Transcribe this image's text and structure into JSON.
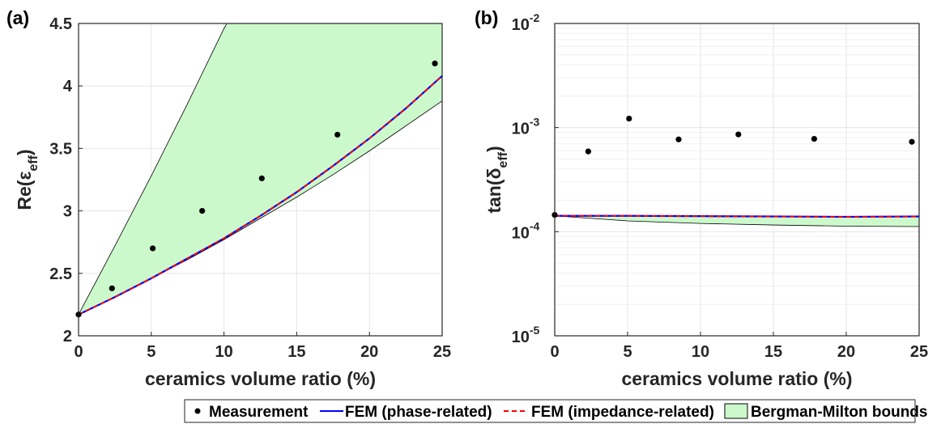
{
  "colors": {
    "band_fill": "#ccf9cc",
    "band_edge": "#000000",
    "fem_phase": "#0000ff",
    "fem_impedance": "#ff0000",
    "marker": "#000000",
    "grid": "#e6e6e6"
  },
  "legend": {
    "measurement": "Measurement",
    "fem_phase": "FEM (phase-related)",
    "fem_impedance": "FEM (impedance-related)",
    "bounds": "Bergman-Milton bounds"
  },
  "chart_data": [
    {
      "panel_label": "(a)",
      "type": "line",
      "xlabel": "ceramics volume ratio (%)",
      "ylabel": "Re(ε",
      "ylabel_sub": "eff",
      "ylabel_close": ")",
      "xlim": [
        0,
        25
      ],
      "ylim": [
        2,
        4.5
      ],
      "yscale": "linear",
      "grid": true,
      "xticks": [
        0,
        5,
        10,
        15,
        20,
        25
      ],
      "xtick_labels": [
        "0",
        "5",
        "10",
        "15",
        "20",
        "25"
      ],
      "yticks": [
        2,
        2.5,
        3,
        3.5,
        4,
        4.5
      ],
      "ytick_labels": [
        "2",
        "2.5",
        "3",
        "3.5",
        "4",
        "4.5"
      ],
      "measurement": {
        "x": [
          0,
          2.3,
          5.1,
          8.5,
          12.6,
          17.8,
          24.5
        ],
        "y": [
          2.17,
          2.38,
          2.7,
          3.0,
          3.26,
          3.61,
          4.18
        ]
      },
      "fem_phase": {
        "x": [
          0,
          2.5,
          5,
          7.5,
          10,
          12.5,
          15,
          17.5,
          20,
          22.5,
          25
        ],
        "y": [
          2.17,
          2.31,
          2.46,
          2.62,
          2.78,
          2.96,
          3.15,
          3.36,
          3.58,
          3.82,
          4.08
        ]
      },
      "fem_impedance": {
        "x": [
          0,
          2.5,
          5,
          7.5,
          10,
          12.5,
          15,
          17.5,
          20,
          22.5,
          25
        ],
        "y": [
          2.17,
          2.31,
          2.46,
          2.62,
          2.78,
          2.96,
          3.15,
          3.36,
          3.58,
          3.82,
          4.08
        ]
      },
      "bounds_upper": {
        "x": [
          0,
          2.5,
          5,
          7.5,
          10,
          10.2,
          25
        ],
        "y": [
          2.17,
          2.72,
          3.28,
          3.86,
          4.46,
          4.5,
          4.5
        ]
      },
      "bounds_lower": {
        "x": [
          0,
          2.5,
          5,
          7.5,
          10,
          12.5,
          15,
          17.5,
          20,
          22.5,
          25
        ],
        "y": [
          2.17,
          2.31,
          2.46,
          2.61,
          2.77,
          2.94,
          3.11,
          3.29,
          3.48,
          3.68,
          3.88
        ]
      }
    },
    {
      "panel_label": "(b)",
      "type": "line",
      "xlabel": "ceramics volume ratio (%)",
      "ylabel": "tan(δ",
      "ylabel_sub": "eff",
      "ylabel_close": ")",
      "xlim": [
        0,
        25
      ],
      "ylim": [
        1e-05,
        0.01
      ],
      "yscale": "log",
      "grid": true,
      "xticks": [
        0,
        5,
        10,
        15,
        20,
        25
      ],
      "xtick_labels": [
        "0",
        "5",
        "10",
        "15",
        "20",
        "25"
      ],
      "yticks": [
        1e-05,
        0.0001,
        0.001,
        0.01
      ],
      "ytick_base": [
        "10",
        "10",
        "10",
        "10"
      ],
      "ytick_exp": [
        "-5",
        "-4",
        "-3",
        "-2"
      ],
      "measurement": {
        "x": [
          0,
          2.3,
          5.1,
          8.5,
          12.6,
          17.8,
          24.5
        ],
        "y": [
          0.000145,
          0.00059,
          0.00122,
          0.00077,
          0.00086,
          0.00078,
          0.00073
        ]
      },
      "fem_phase": {
        "x": [
          0,
          5,
          10,
          15,
          20,
          25
        ],
        "y": [
          0.000142,
          0.000142,
          0.000141,
          0.00014,
          0.000139,
          0.00014
        ]
      },
      "fem_impedance": {
        "x": [
          0,
          5,
          10,
          15,
          20,
          25
        ],
        "y": [
          0.000142,
          0.000142,
          0.000141,
          0.00014,
          0.000139,
          0.00014
        ]
      },
      "bounds_upper": {
        "x": [
          0,
          5,
          10,
          15,
          20,
          25
        ],
        "y": [
          0.000142,
          0.000142,
          0.000141,
          0.00014,
          0.000139,
          0.00014
        ]
      },
      "bounds_lower": {
        "x": [
          0,
          5,
          10,
          15,
          20,
          25
        ],
        "y": [
          0.000142,
          0.000127,
          0.00012,
          0.000116,
          0.000113,
          0.000112
        ]
      }
    }
  ]
}
